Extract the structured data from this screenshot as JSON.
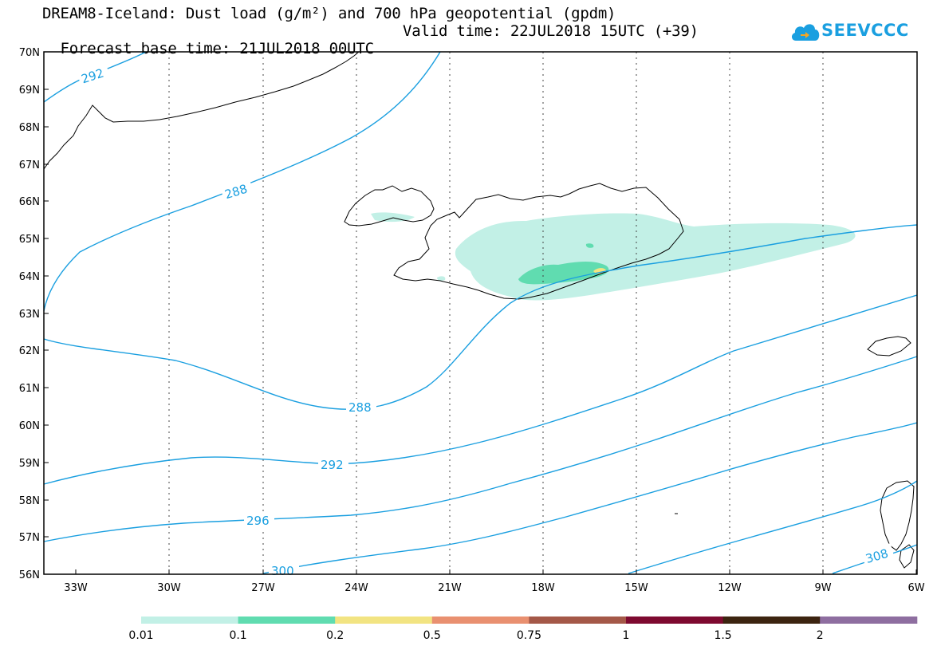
{
  "title": {
    "line1": "DREAM8-Iceland: Dust load (g/m²) and 700 hPa geopotential (gpdm)",
    "forecast_base": "Forecast base time: 21JUL2018 00UTC",
    "valid_time": "Valid time: 22JUL2018 15UTC (+39)"
  },
  "logo": {
    "text": "SEEVCCC",
    "icon": "cloud-logo-icon",
    "color": "#1a9fe0"
  },
  "map": {
    "lat_labels": [
      "70N",
      "69N",
      "68N",
      "67N",
      "66N",
      "65N",
      "64N",
      "63N",
      "62N",
      "61N",
      "60N",
      "59N",
      "58N",
      "57N",
      "56N"
    ],
    "lon_labels": [
      "33W",
      "30W",
      "27W",
      "24W",
      "21W",
      "18W",
      "15W",
      "12W",
      "9W",
      "6W"
    ],
    "contour_color": "#1a9fe0",
    "contour_labels": [
      "292",
      "288",
      "288",
      "292",
      "296",
      "300",
      "308"
    ]
  },
  "legend": {
    "colors": [
      "#c2f0e6",
      "#60dcb0",
      "#f2e482",
      "#e99070",
      "#a45848",
      "#7e0a30",
      "#3c2410",
      "#8e6ea0"
    ],
    "labels": [
      "0.01",
      "0.1",
      "0.2",
      "0.5",
      "0.75",
      "1",
      "1.5",
      "2"
    ]
  }
}
